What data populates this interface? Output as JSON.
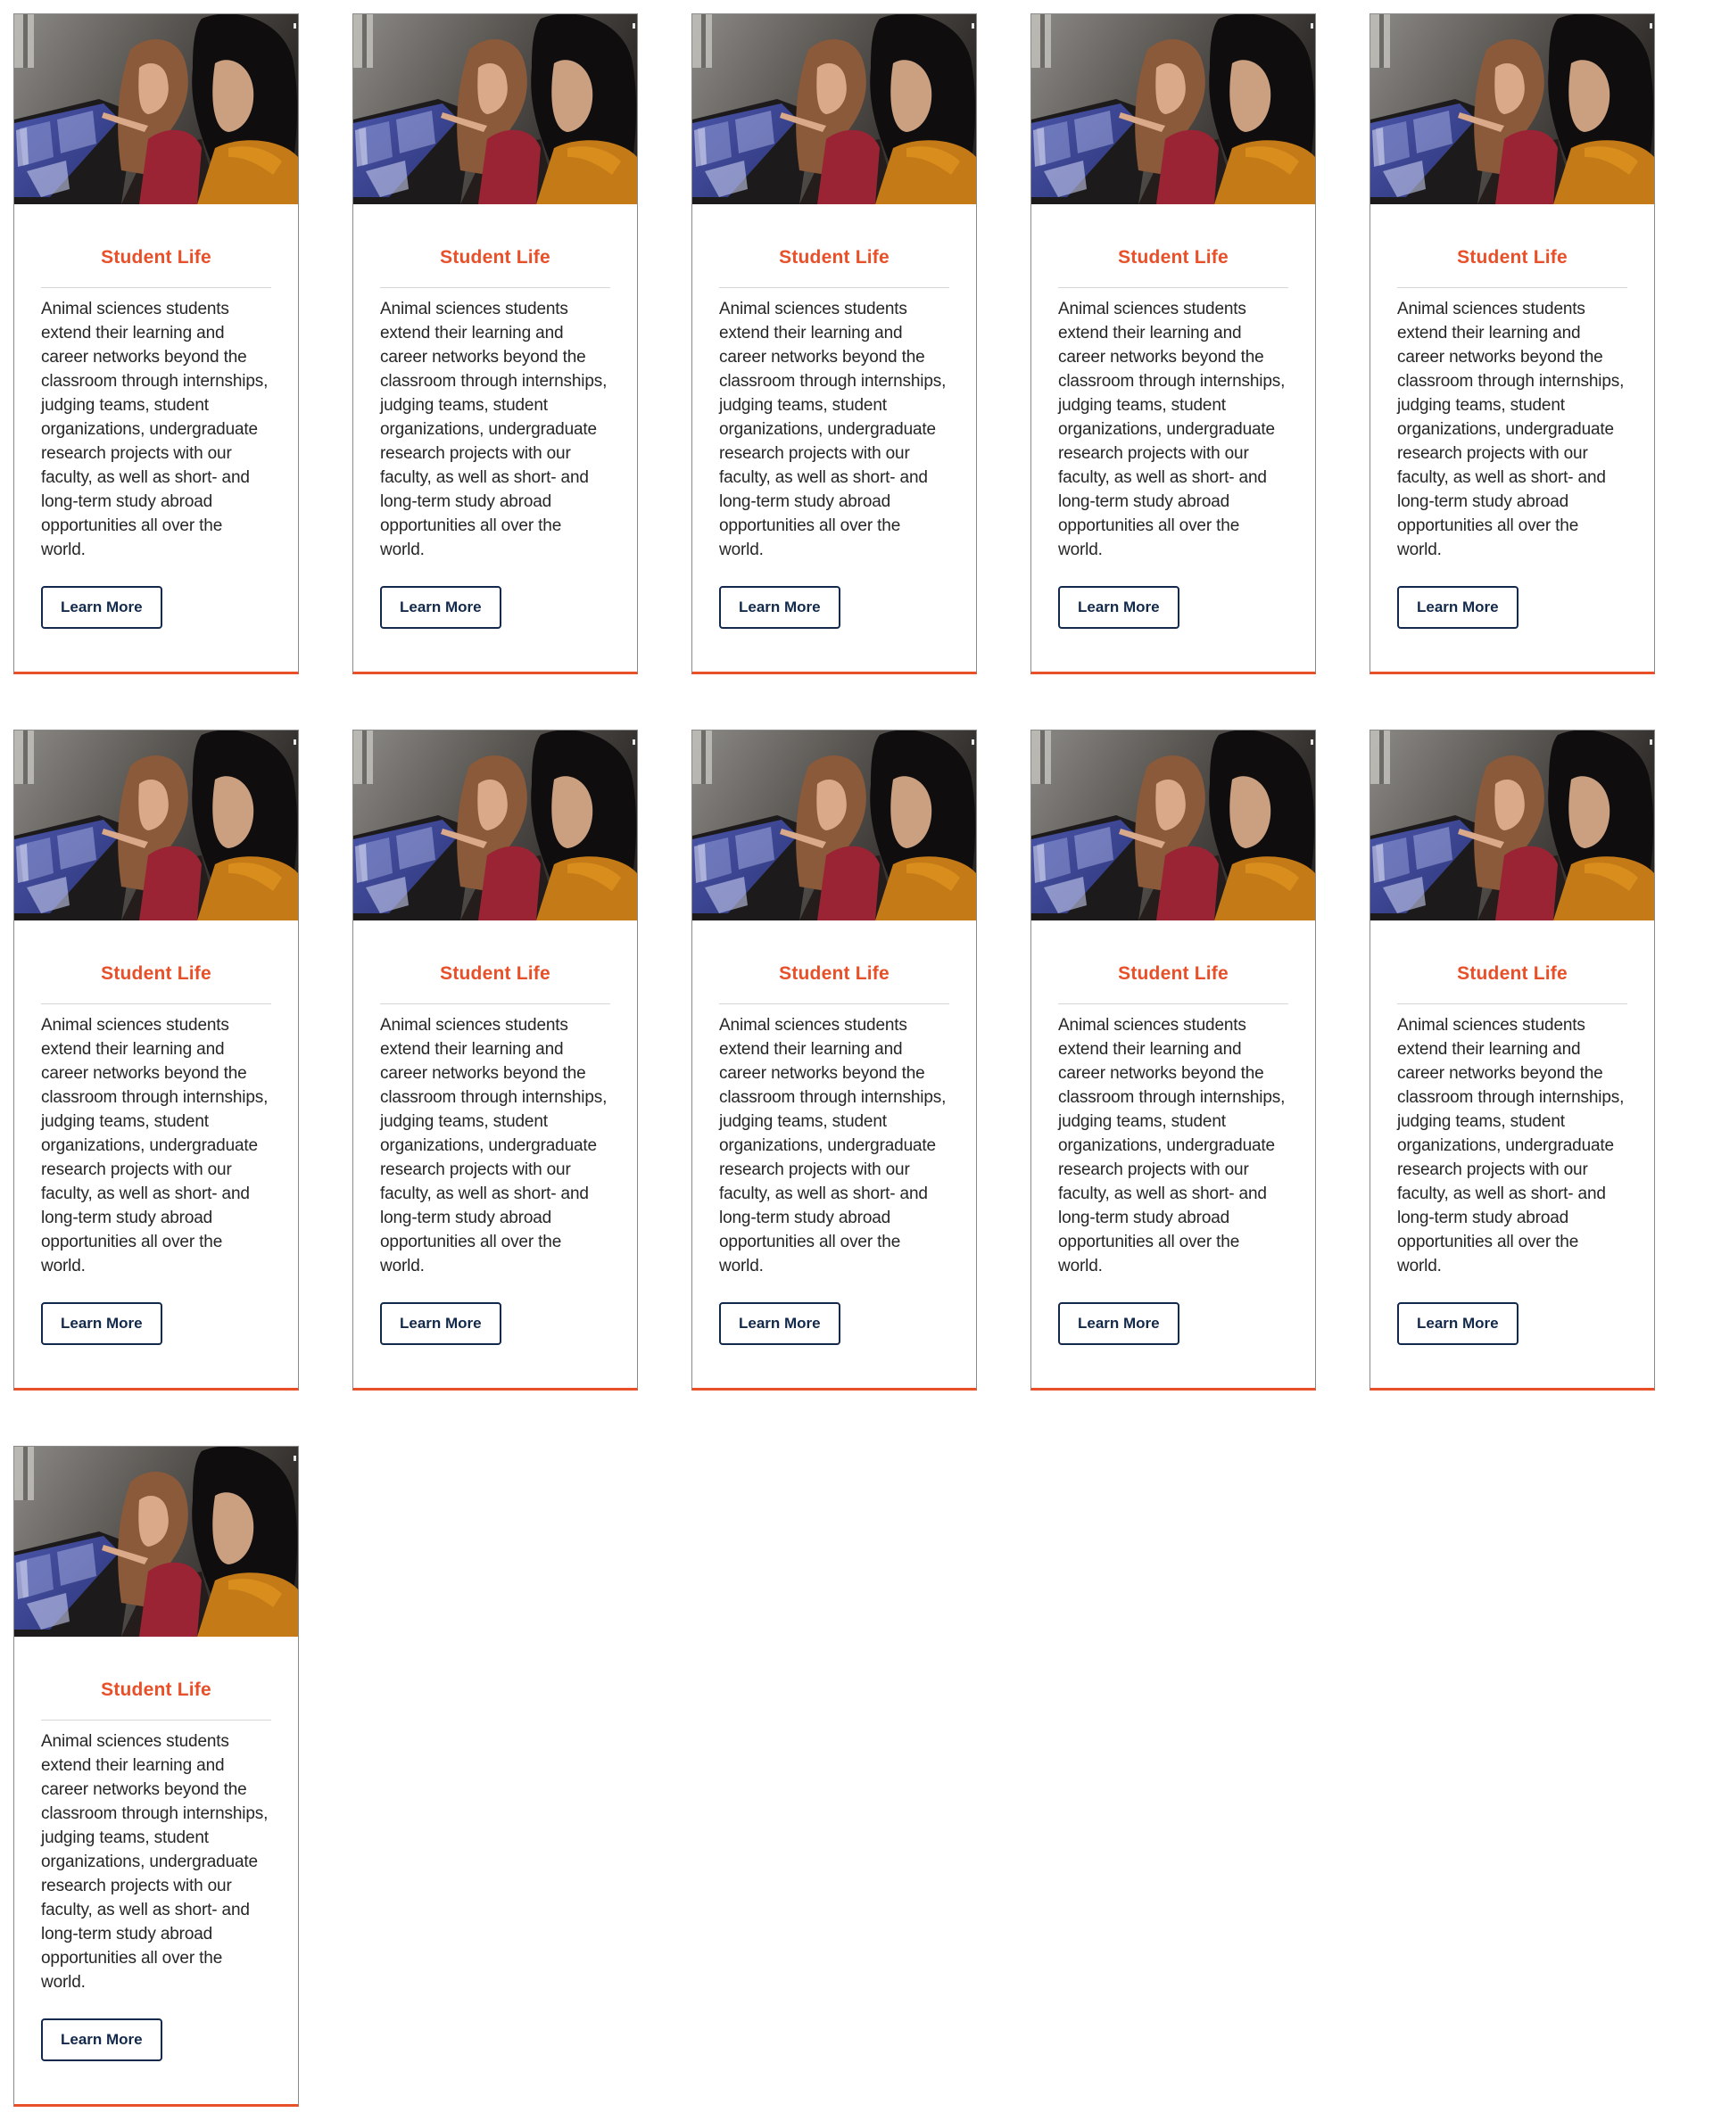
{
  "colors": {
    "accent": "#e8502a",
    "button_border": "#13294b",
    "text": "#262626",
    "divider": "#d6d6d6"
  },
  "cards": [
    {
      "image_icon": "student-photo",
      "title": "Student Life",
      "text": "Animal sciences students extend their learning and career networks beyond the classroom through internships, judging teams, student organizations, undergraduate research projects with our faculty, as well as short- and long-term study abroad opportunities all over the world.",
      "button_label": "Learn More"
    },
    {
      "image_icon": "student-photo",
      "title": "Student Life",
      "text": "Animal sciences students extend their learning and career networks beyond the classroom through internships, judging teams, student organizations, undergraduate research projects with our faculty, as well as short- and long-term study abroad opportunities all over the world.",
      "button_label": "Learn More"
    },
    {
      "image_icon": "student-photo",
      "title": "Student Life",
      "text": "Animal sciences students extend their learning and career networks beyond the classroom through internships, judging teams, student organizations, undergraduate research projects with our faculty, as well as short- and long-term study abroad opportunities all over the world.",
      "button_label": "Learn More"
    },
    {
      "image_icon": "student-photo",
      "title": "Student Life",
      "text": "Animal sciences students extend their learning and career networks beyond the classroom through internships, judging teams, student organizations, undergraduate research projects with our faculty, as well as short- and long-term study abroad opportunities all over the world.",
      "button_label": "Learn More"
    },
    {
      "image_icon": "student-photo",
      "title": "Student Life",
      "text": "Animal sciences students extend their learning and career networks beyond the classroom through internships, judging teams, student organizations, undergraduate research projects with our faculty, as well as short- and long-term study abroad opportunities all over the world.",
      "button_label": "Learn More"
    },
    {
      "image_icon": "student-photo",
      "title": "Student Life",
      "text": "Animal sciences students extend their learning and career networks beyond the classroom through internships, judging teams, student organizations, undergraduate research projects with our faculty, as well as short- and long-term study abroad opportunities all over the world.",
      "button_label": "Learn More"
    },
    {
      "image_icon": "student-photo",
      "title": "Student Life",
      "text": "Animal sciences students extend their learning and career networks beyond the classroom through internships, judging teams, student organizations, undergraduate research projects with our faculty, as well as short- and long-term study abroad opportunities all over the world.",
      "button_label": "Learn More"
    },
    {
      "image_icon": "student-photo",
      "title": "Student Life",
      "text": "Animal sciences students extend their learning and career networks beyond the classroom through internships, judging teams, student organizations, undergraduate research projects with our faculty, as well as short- and long-term study abroad opportunities all over the world.",
      "button_label": "Learn More"
    },
    {
      "image_icon": "student-photo",
      "title": "Student Life",
      "text": "Animal sciences students extend their learning and career networks beyond the classroom through internships, judging teams, student organizations, undergraduate research projects with our faculty, as well as short- and long-term study abroad opportunities all over the world.",
      "button_label": "Learn More"
    },
    {
      "image_icon": "student-photo",
      "title": "Student Life",
      "text": "Animal sciences students extend their learning and career networks beyond the classroom through internships, judging teams, student organizations, undergraduate research projects with our faculty, as well as short- and long-term study abroad opportunities all over the world.",
      "button_label": "Learn More"
    },
    {
      "image_icon": "student-photo",
      "title": "Student Life",
      "text": "Animal sciences students extend their learning and career networks beyond the classroom through internships, judging teams, student organizations, undergraduate research projects with our faculty, as well as short- and long-term study abroad opportunities all over the world.",
      "button_label": "Learn More"
    }
  ]
}
